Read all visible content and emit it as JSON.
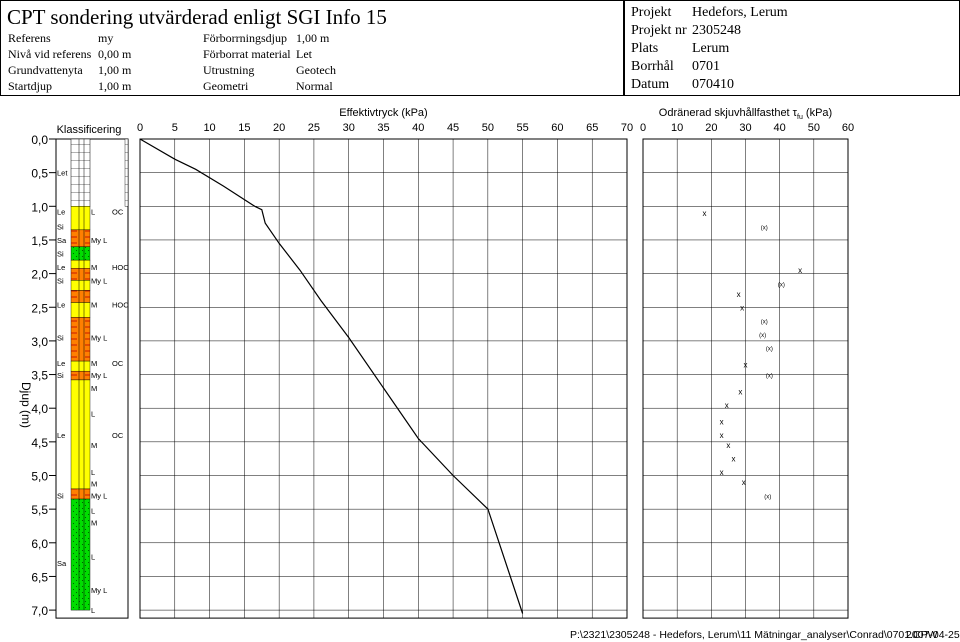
{
  "header": {
    "title": "CPT sondering utvärderad enligt SGI Info 15",
    "params": [
      {
        "label": "Referens",
        "value": "my"
      },
      {
        "label": "Nivå vid referens",
        "value": "0,00 m"
      },
      {
        "label": "Grundvattenyta",
        "value": "1,00 m"
      },
      {
        "label": "Startdjup",
        "value": "1,00 m"
      }
    ],
    "params2": [
      {
        "label": "Förborrningsdjup",
        "value": "1,00 m"
      },
      {
        "label": "Förborrat material",
        "value": "Let"
      },
      {
        "label": "Utrustning",
        "value": "Geotech"
      },
      {
        "label": "Geometri",
        "value": "Normal"
      }
    ],
    "project": [
      {
        "label": "Projekt",
        "value": "Hedefors, Lerum"
      },
      {
        "label": "Projekt nr",
        "value": "2305248"
      },
      {
        "label": "Plats",
        "value": "Lerum"
      },
      {
        "label": "Borrhål",
        "value": "0701"
      },
      {
        "label": "Datum",
        "value": "070410"
      }
    ]
  },
  "footer": {
    "path": "P:\\2321\\2305248 - Hedefors, Lerum\\11 Mätningar_analyser\\Conrad\\0701.CPW",
    "date": "2007-04-25"
  },
  "colors": {
    "yellow": "#ffff00",
    "orange": "#ff7f00",
    "green": "#00dd00",
    "grid": "#000000"
  },
  "chart_data": [
    {
      "type": "table",
      "title": "Klassificering",
      "ylabel": "Djup (m)",
      "ylim": [
        0,
        7.0
      ],
      "depth_ticks": [
        "0,0",
        "0,5",
        "1,0",
        "1,5",
        "2,0",
        "2,5",
        "3,0",
        "3,5",
        "4,0",
        "4,5",
        "5,0",
        "5,5",
        "6,0",
        "6,5",
        "7,0"
      ],
      "layers": [
        {
          "top": 0.0,
          "bottom": 1.0,
          "color": "hatch"
        },
        {
          "top": 1.0,
          "bottom": 1.35,
          "color": "yellow"
        },
        {
          "top": 1.35,
          "bottom": 1.6,
          "color": "orange"
        },
        {
          "top": 1.6,
          "bottom": 1.8,
          "color": "green"
        },
        {
          "top": 1.8,
          "bottom": 1.92,
          "color": "yellow"
        },
        {
          "top": 1.92,
          "bottom": 2.1,
          "color": "orange"
        },
        {
          "top": 2.1,
          "bottom": 2.25,
          "color": "yellow"
        },
        {
          "top": 2.25,
          "bottom": 2.43,
          "color": "orange"
        },
        {
          "top": 2.43,
          "bottom": 2.65,
          "color": "yellow"
        },
        {
          "top": 2.65,
          "bottom": 3.3,
          "color": "orange"
        },
        {
          "top": 3.3,
          "bottom": 3.45,
          "color": "yellow"
        },
        {
          "top": 3.45,
          "bottom": 3.58,
          "color": "orange"
        },
        {
          "top": 3.58,
          "bottom": 5.2,
          "color": "yellow"
        },
        {
          "top": 5.2,
          "bottom": 5.35,
          "color": "orange"
        },
        {
          "top": 5.35,
          "bottom": 7.0,
          "color": "green"
        }
      ],
      "labels": [
        {
          "depth": 0.5,
          "text": "Let",
          "col": 1
        },
        {
          "depth": 1.08,
          "text": "Le",
          "col": 1
        },
        {
          "depth": 1.08,
          "text": "L",
          "col": 2
        },
        {
          "depth": 1.08,
          "text": "OC",
          "col": 3
        },
        {
          "depth": 1.3,
          "text": "Si",
          "col": 1
        },
        {
          "depth": 1.5,
          "text": "Sa",
          "col": 1
        },
        {
          "depth": 1.5,
          "text": "My L",
          "col": 2
        },
        {
          "depth": 1.7,
          "text": "Si",
          "col": 1
        },
        {
          "depth": 1.9,
          "text": "Le",
          "col": 1
        },
        {
          "depth": 1.9,
          "text": "M",
          "col": 2
        },
        {
          "depth": 1.9,
          "text": "HOC",
          "col": 3
        },
        {
          "depth": 2.1,
          "text": "Si",
          "col": 1
        },
        {
          "depth": 2.1,
          "text": "My L",
          "col": 2
        },
        {
          "depth": 2.46,
          "text": "Le",
          "col": 1
        },
        {
          "depth": 2.46,
          "text": "M",
          "col": 2
        },
        {
          "depth": 2.46,
          "text": "HOC",
          "col": 3
        },
        {
          "depth": 2.95,
          "text": "Si",
          "col": 1
        },
        {
          "depth": 2.95,
          "text": "My L",
          "col": 2
        },
        {
          "depth": 3.33,
          "text": "Le",
          "col": 1
        },
        {
          "depth": 3.33,
          "text": "M",
          "col": 2
        },
        {
          "depth": 3.33,
          "text": "OC",
          "col": 3
        },
        {
          "depth": 3.51,
          "text": "Si",
          "col": 1
        },
        {
          "depth": 3.51,
          "text": "My L",
          "col": 2
        },
        {
          "depth": 3.7,
          "text": "M",
          "col": 2
        },
        {
          "depth": 4.08,
          "text": "L",
          "col": 2
        },
        {
          "depth": 4.4,
          "text": "Le",
          "col": 1
        },
        {
          "depth": 4.4,
          "text": "OC",
          "col": 3
        },
        {
          "depth": 4.55,
          "text": "M",
          "col": 2
        },
        {
          "depth": 4.95,
          "text": "L",
          "col": 2
        },
        {
          "depth": 5.12,
          "text": "M",
          "col": 2
        },
        {
          "depth": 5.3,
          "text": "Si",
          "col": 1
        },
        {
          "depth": 5.3,
          "text": "My L",
          "col": 2
        },
        {
          "depth": 5.52,
          "text": "L",
          "col": 2
        },
        {
          "depth": 5.7,
          "text": "M",
          "col": 2
        },
        {
          "depth": 6.2,
          "text": "L",
          "col": 2
        },
        {
          "depth": 6.3,
          "text": "Sa",
          "col": 1
        },
        {
          "depth": 6.7,
          "text": "My L",
          "col": 2
        },
        {
          "depth": 7.0,
          "text": "L",
          "col": 2
        }
      ]
    },
    {
      "type": "line",
      "title": "Effektivtryck  (kPa)",
      "xlim": [
        0,
        70
      ],
      "xticks": [
        0,
        5,
        10,
        15,
        20,
        25,
        30,
        35,
        40,
        45,
        50,
        55,
        60,
        65,
        70
      ],
      "ylim": [
        0,
        7.0
      ],
      "series": [
        {
          "x": [
            0.0,
            5.0,
            8.0,
            12.0,
            16.5,
            17.5,
            18.0,
            20.0,
            23.0,
            26.0,
            30.0,
            35.0,
            40.0,
            45.0,
            50.0,
            55.0
          ],
          "y": [
            0.0,
            0.3,
            0.45,
            0.7,
            1.0,
            1.05,
            1.25,
            1.55,
            1.95,
            2.4,
            2.95,
            3.7,
            4.45,
            5.0,
            5.5,
            7.05
          ]
        }
      ]
    },
    {
      "type": "scatter",
      "title": "Odränerad skjuvhållfasthet τ",
      "title_sub": "fu",
      "title_unit": "(kPa)",
      "xlim": [
        0,
        60
      ],
      "xticks": [
        0,
        10,
        20,
        30,
        40,
        50,
        60
      ],
      "ylim": [
        0,
        7.0
      ],
      "series": [
        {
          "marker": "x",
          "x": [
            18,
            46,
            28,
            29,
            30,
            28.5,
            24.5,
            23,
            23,
            25,
            26.5,
            23,
            29.5
          ],
          "y": [
            1.1,
            1.95,
            2.3,
            2.5,
            3.35,
            3.75,
            3.95,
            4.2,
            4.4,
            4.55,
            4.75,
            4.95,
            5.1
          ]
        },
        {
          "marker": "(x)",
          "x": [
            35.5,
            40.5,
            35.5,
            35,
            37,
            37,
            36.5
          ],
          "y": [
            1.3,
            2.15,
            2.7,
            2.9,
            3.1,
            3.5,
            5.3
          ]
        }
      ]
    }
  ]
}
